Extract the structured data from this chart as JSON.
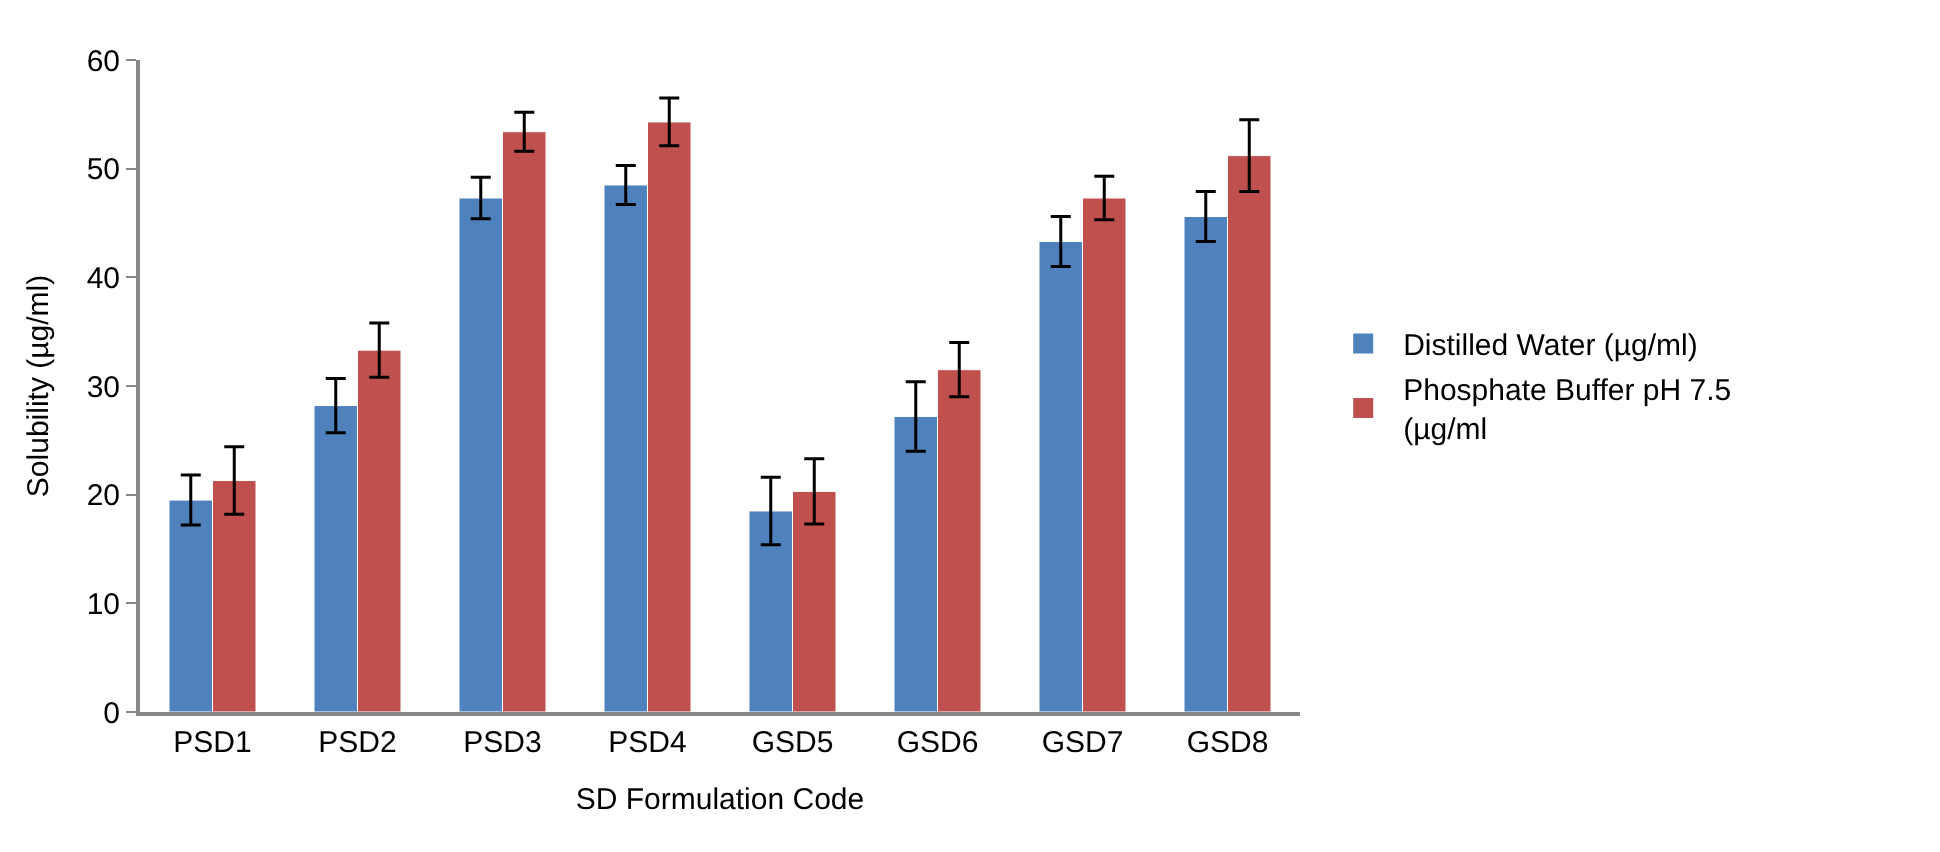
{
  "chart_data": {
    "type": "bar",
    "xlabel": "SD Formulation Code",
    "ylabel": "Solubility (µg/ml)",
    "categories": [
      "PSD1",
      "PSD2",
      "PSD3",
      "PSD4",
      "GSD5",
      "GSD6",
      "GSD7",
      "GSD8"
    ],
    "series": [
      {
        "name": "Distilled Water (µg/ml)",
        "color": "#4f81bd",
        "values": [
          19.5,
          28.2,
          47.3,
          48.5,
          18.5,
          27.2,
          43.3,
          45.6
        ],
        "errors": [
          2.3,
          2.5,
          1.9,
          1.8,
          3.1,
          3.2,
          2.3,
          2.3
        ]
      },
      {
        "name": "Phosphate Buffer pH 7.5 (µg/ml",
        "color": "#c0504d",
        "values": [
          21.3,
          33.3,
          53.4,
          54.3,
          20.3,
          31.5,
          47.3,
          51.2
        ],
        "errors": [
          3.1,
          2.5,
          1.8,
          2.2,
          3.0,
          2.5,
          2.0,
          3.3
        ]
      }
    ],
    "ylim": [
      0,
      60
    ],
    "yticks": [
      0,
      10,
      20,
      30,
      40,
      50,
      60
    ],
    "grid": false,
    "legend": "right"
  }
}
